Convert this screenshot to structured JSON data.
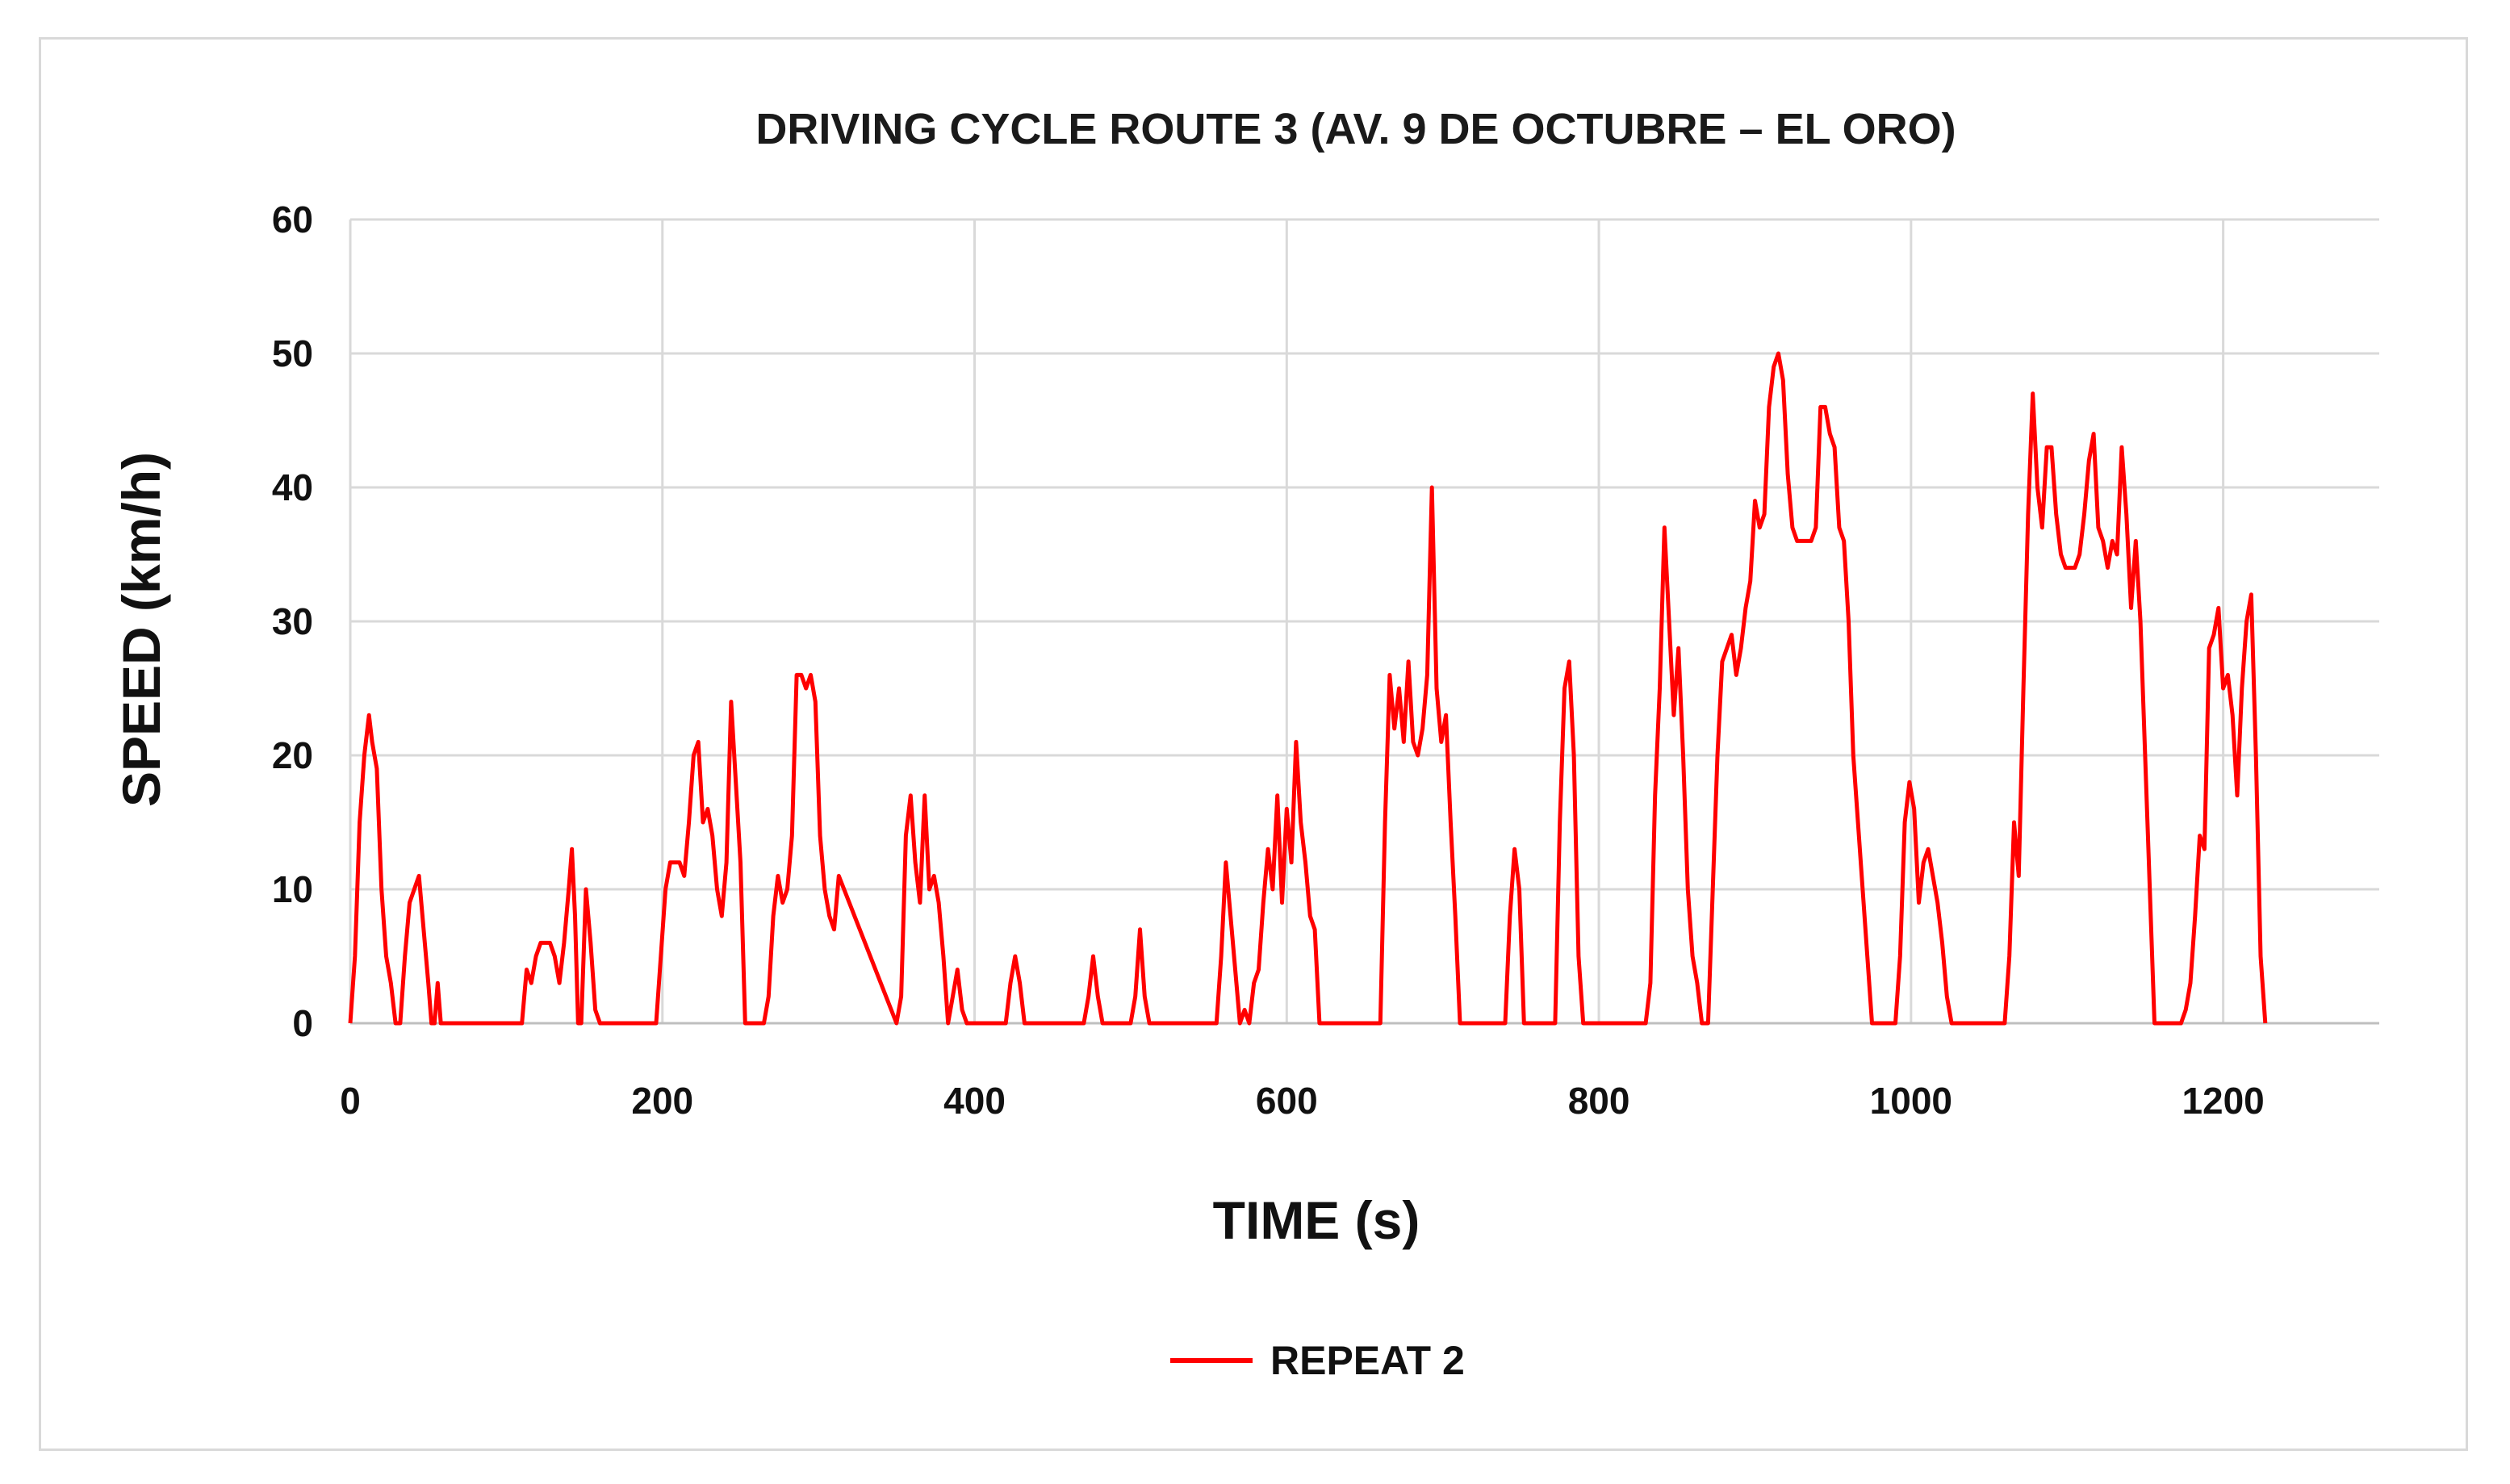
{
  "chart_data": {
    "type": "line",
    "title": "DRIVING CYCLE ROUTE 3 (AV. 9 DE OCTUBRE – EL ORO)",
    "xlabel": "TIME (s)",
    "ylabel": "SPEED (km/h)",
    "xlim": [
      0,
      1300
    ],
    "ylim": [
      0,
      60
    ],
    "xticks": [
      0,
      200,
      400,
      600,
      800,
      1000,
      1200
    ],
    "yticks": [
      0,
      10,
      20,
      30,
      40,
      50,
      60
    ],
    "grid": true,
    "legend_position": "bottom-center",
    "colors": {
      "series": "#ff0000",
      "grid": "#d9d9d9",
      "axis": "#bfbfbf"
    },
    "series": [
      {
        "name": "REPEAT 2",
        "x": [
          0,
          3,
          6,
          9,
          12,
          14,
          17,
          20,
          23,
          26,
          29,
          32,
          35,
          38,
          41,
          44,
          47,
          50,
          52,
          54,
          56,
          58,
          60,
          62,
          110,
          113,
          116,
          119,
          122,
          125,
          128,
          131,
          134,
          137,
          140,
          142,
          144,
          146,
          148,
          151,
          154,
          157,
          160,
          163,
          166,
          196,
          199,
          202,
          205,
          208,
          211,
          214,
          217,
          220,
          223,
          226,
          229,
          232,
          235,
          238,
          241,
          244,
          247,
          250,
          253,
          262,
          265,
          268,
          271,
          274,
          277,
          280,
          283,
          286,
          289,
          292,
          295,
          298,
          301,
          304,
          307,
          310,
          313,
          350,
          353,
          356,
          359,
          362,
          365,
          368,
          371,
          374,
          377,
          380,
          383,
          386,
          389,
          392,
          395,
          398,
          401,
          420,
          423,
          426,
          429,
          432,
          470,
          473,
          476,
          479,
          482,
          500,
          503,
          506,
          509,
          512,
          555,
          558,
          561,
          564,
          567,
          570,
          573,
          576,
          579,
          582,
          585,
          588,
          591,
          594,
          597,
          600,
          603,
          606,
          609,
          612,
          615,
          618,
          621,
          624,
          627,
          630,
          660,
          663,
          666,
          669,
          672,
          675,
          678,
          681,
          684,
          687,
          690,
          693,
          696,
          699,
          702,
          705,
          708,
          711,
          714,
          717,
          720,
          740,
          743,
          746,
          749,
          752,
          755,
          772,
          775,
          778,
          781,
          784,
          787,
          790,
          793,
          796,
          830,
          833,
          836,
          839,
          842,
          845,
          848,
          851,
          854,
          857,
          860,
          863,
          866,
          870,
          873,
          876,
          879,
          882,
          885,
          888,
          891,
          894,
          897,
          900,
          903,
          906,
          909,
          912,
          915,
          918,
          921,
          924,
          927,
          930,
          933,
          936,
          939,
          942,
          945,
          948,
          951,
          954,
          957,
          960,
          963,
          966,
          969,
          972,
          975,
          978,
          990,
          993,
          996,
          999,
          1002,
          1005,
          1008,
          1011,
          1014,
          1017,
          1020,
          1023,
          1026,
          1060,
          1063,
          1066,
          1069,
          1072,
          1075,
          1078,
          1081,
          1084,
          1087,
          1090,
          1093,
          1096,
          1099,
          1102,
          1105,
          1108,
          1111,
          1114,
          1117,
          1120,
          1123,
          1126,
          1129,
          1132,
          1135,
          1138,
          1141,
          1144,
          1147,
          1150,
          1153,
          1156,
          1159,
          1162,
          1170,
          1173,
          1176,
          1179,
          1182,
          1185,
          1188,
          1191,
          1194,
          1197,
          1200,
          1203,
          1206,
          1209,
          1212,
          1215,
          1218,
          1221,
          1224,
          1227
        ],
        "y": [
          0,
          5,
          15,
          20,
          23,
          21,
          19,
          10,
          5,
          3,
          0,
          0,
          5,
          9,
          10,
          11,
          7,
          3,
          0,
          0,
          3,
          0,
          0,
          0,
          0,
          4,
          3,
          5,
          6,
          6,
          6,
          5,
          3,
          6,
          10,
          13,
          8,
          0,
          0,
          10,
          6,
          1,
          0,
          0,
          0,
          0,
          5,
          10,
          12,
          12,
          12,
          11,
          15,
          20,
          21,
          15,
          16,
          14,
          10,
          8,
          12,
          24,
          18,
          12,
          0,
          0,
          0,
          2,
          8,
          11,
          9,
          10,
          14,
          26,
          26,
          25,
          26,
          24,
          14,
          10,
          8,
          7,
          11,
          0,
          2,
          14,
          17,
          12,
          9,
          17,
          10,
          11,
          9,
          5,
          0,
          2,
          4,
          1,
          0,
          0,
          0,
          0,
          3,
          5,
          3,
          0,
          0,
          2,
          5,
          2,
          0,
          0,
          2,
          7,
          2,
          0,
          0,
          5,
          12,
          8,
          4,
          0,
          1,
          0,
          3,
          4,
          9,
          13,
          10,
          17,
          9,
          16,
          12,
          21,
          15,
          12,
          8,
          7,
          0,
          0,
          0,
          0,
          0,
          15,
          26,
          22,
          25,
          21,
          27,
          21,
          20,
          22,
          26,
          40,
          25,
          21,
          23,
          15,
          8,
          0,
          0,
          0,
          0,
          0,
          8,
          13,
          10,
          0,
          0,
          0,
          15,
          25,
          27,
          20,
          5,
          0,
          0,
          0,
          0,
          3,
          17,
          25,
          37,
          30,
          23,
          28,
          20,
          10,
          5,
          3,
          0,
          0,
          10,
          20,
          27,
          28,
          29,
          26,
          28,
          31,
          33,
          39,
          37,
          38,
          46,
          49,
          50,
          48,
          41,
          37,
          36,
          36,
          36,
          36,
          37,
          46,
          46,
          44,
          43,
          37,
          36,
          30,
          20,
          15,
          10,
          5,
          0,
          0,
          0,
          5,
          15,
          18,
          16,
          9,
          12,
          13,
          11,
          9,
          6,
          2,
          0,
          0,
          5,
          15,
          11,
          25,
          38,
          47,
          40,
          37,
          43,
          43,
          38,
          35,
          34,
          34,
          34,
          35,
          38,
          42,
          44,
          37,
          36,
          34,
          36,
          35,
          43,
          38,
          31,
          36,
          30,
          20,
          10,
          0,
          0,
          0,
          0,
          0,
          1,
          3,
          8,
          14,
          13,
          28,
          29,
          31,
          25,
          26,
          23,
          17,
          25,
          30,
          32,
          20,
          5,
          0
        ]
      }
    ]
  }
}
